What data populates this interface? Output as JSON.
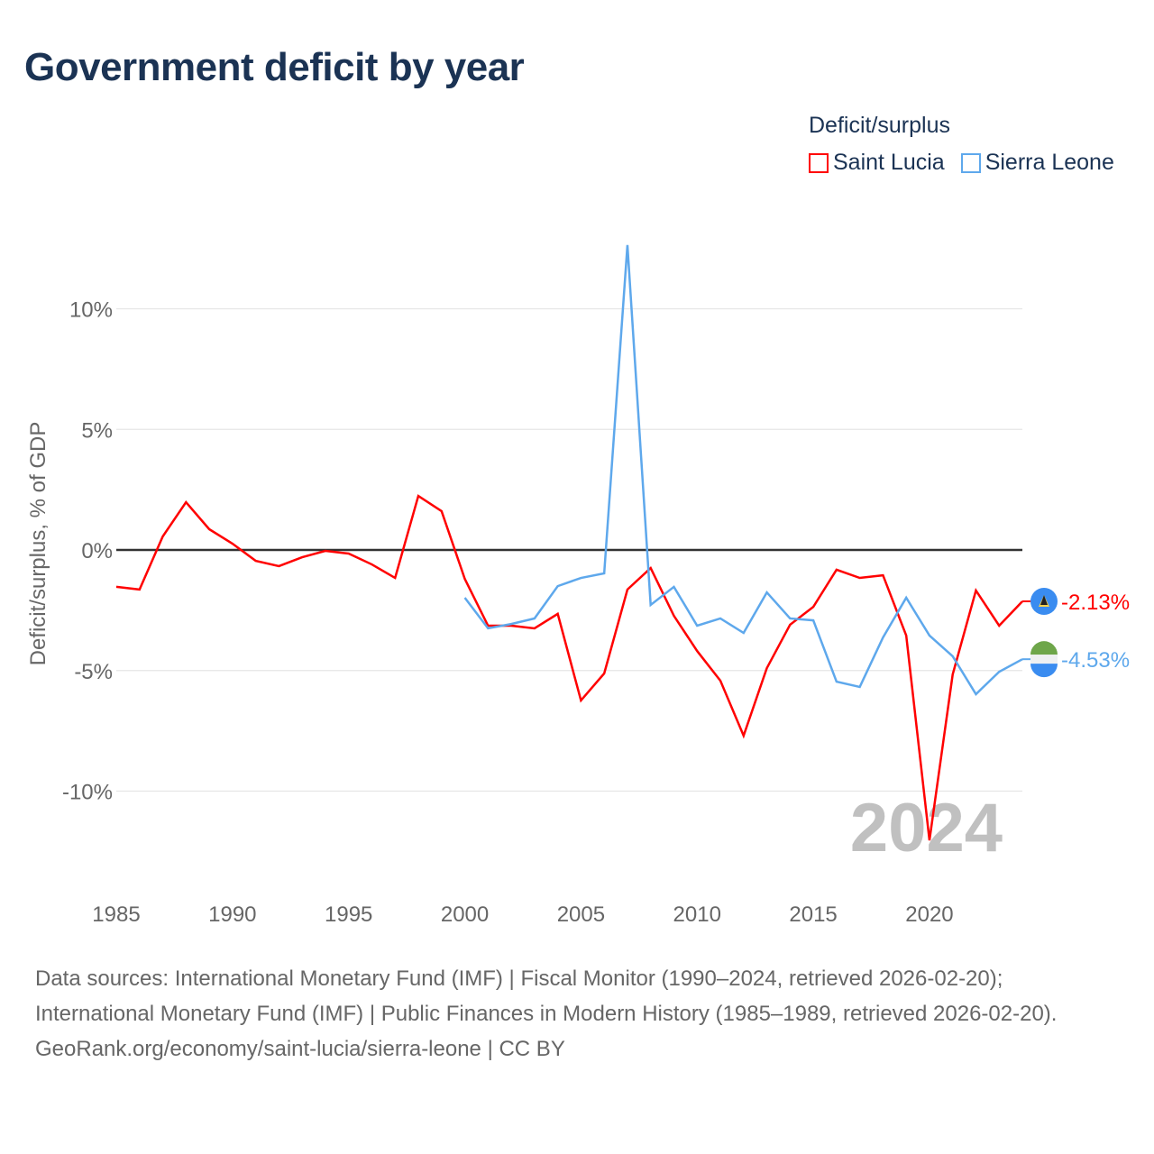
{
  "title": "Government deficit by year",
  "legend_title": "Deficit/surplus",
  "watermark_year": "2024",
  "footer": {
    "sources": "Data sources: International Monetary Fund (IMF) | Fiscal Monitor (1990–2024, retrieved 2026-02-20); International Monetary Fund (IMF) | Public Finances in Modern History (1985–1989, retrieved 2026-02-20).",
    "credit": "GeoRank.org/economy/saint-lucia/sierra-leone | CC BY"
  },
  "chart_data": {
    "type": "line",
    "title": "Government deficit by year",
    "xlabel": "",
    "ylabel": "Deficit/surplus, % of GDP",
    "xlim": [
      1985,
      2024
    ],
    "ylim": [
      -12.5,
      12.7
    ],
    "xticks": [
      1985,
      1990,
      1995,
      2000,
      2005,
      2010,
      2015,
      2020
    ],
    "yticks": [
      {
        "v": 10,
        "label": "10%"
      },
      {
        "v": 5,
        "label": "5%"
      },
      {
        "v": 0,
        "label": "0%"
      },
      {
        "v": -5,
        "label": "-5%"
      },
      {
        "v": -10,
        "label": "-10%"
      }
    ],
    "legend_position": "top-right",
    "series": [
      {
        "name": "Saint Lucia",
        "color": "#ff0000",
        "end_label": "-2.13%",
        "start": 1985,
        "values": [
          -1.53,
          -1.64,
          0.56,
          1.98,
          0.86,
          0.26,
          -0.45,
          -0.67,
          -0.3,
          -0.04,
          -0.15,
          -0.6,
          -1.16,
          2.24,
          1.61,
          -1.2,
          -3.14,
          -3.14,
          -3.25,
          -2.65,
          -6.24,
          -5.12,
          -1.64,
          -0.75,
          -2.73,
          -4.19,
          -5.42,
          -7.7,
          -4.9,
          -3.1,
          -2.36,
          -0.82,
          -1.16,
          -1.05,
          -3.55,
          -12.04,
          -5.16,
          -1.68,
          -3.14,
          -2.13
        ]
      },
      {
        "name": "Sierra Leone",
        "color": "#5ea8ec",
        "end_label": "-4.53%",
        "start": 2000,
        "values": [
          -1.98,
          -3.25,
          -3.07,
          -2.84,
          -1.5,
          -1.16,
          -0.97,
          12.64,
          -2.28,
          -1.53,
          -3.14,
          -2.84,
          -3.44,
          -1.76,
          -2.84,
          -2.92,
          -5.46,
          -5.68,
          -3.63,
          -1.98,
          -3.55,
          -4.41,
          -5.98,
          -5.05,
          -4.53
        ]
      }
    ]
  }
}
